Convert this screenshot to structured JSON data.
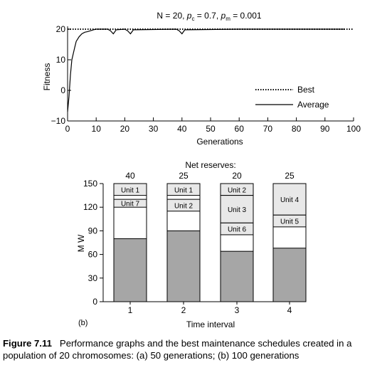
{
  "figure": {
    "number": "Figure 7.11",
    "caption": "Performance graphs and the best maintenance schedules created in a population of 20 chromosomes: (a) 50 generations; (b) 100 generations"
  },
  "chart_data": [
    {
      "type": "line",
      "title": "N = 20, pc = 0.7, pm = 0.001",
      "title_parts": {
        "n": "N = 20, ",
        "pc_sym": "p",
        "pc_sub": "c",
        "pc_val": " = 0.7, ",
        "pm_sym": "p",
        "pm_sub": "m",
        "pm_val": " = 0.001"
      },
      "xlabel": "Generations",
      "ylabel": "Fitness",
      "xlim": [
        0,
        100
      ],
      "ylim": [
        -10,
        20
      ],
      "xticks": [
        0,
        10,
        20,
        30,
        40,
        50,
        60,
        70,
        80,
        90,
        100
      ],
      "yticks": [
        -10,
        0,
        10,
        20
      ],
      "legend_position": "lower-right",
      "series": [
        {
          "name": "Best",
          "style": "dotted",
          "x": [
            0,
            100
          ],
          "y": [
            20,
            20
          ]
        },
        {
          "name": "Average",
          "style": "solid",
          "x": [
            0,
            0.5,
            1,
            1.5,
            2,
            2.5,
            3,
            4,
            5,
            6,
            7,
            8,
            9,
            10,
            14,
            15,
            16,
            17,
            20,
            21,
            22,
            23,
            38,
            39,
            40,
            41,
            60,
            70,
            80,
            90,
            97
          ],
          "y": [
            -7,
            -2,
            5,
            10,
            12,
            14,
            16,
            17.5,
            18.5,
            19,
            19.2,
            19.5,
            19.8,
            20,
            20,
            19.5,
            18.5,
            19.8,
            20,
            19.5,
            18.5,
            19.8,
            20,
            19.5,
            18.5,
            19.8,
            20,
            20,
            20,
            20,
            20
          ]
        }
      ]
    },
    {
      "type": "bar",
      "panel_label": "(b)",
      "title": "Net reserves:",
      "xlabel": "Time interval",
      "ylabel": "M W",
      "ylim": [
        0,
        150
      ],
      "yticks": [
        0,
        30,
        60,
        90,
        120,
        150
      ],
      "categories": [
        "1",
        "2",
        "3",
        "4"
      ],
      "net_reserves": [
        "40",
        "25",
        "20",
        "25"
      ],
      "base_load": [
        80,
        90,
        64,
        68
      ],
      "segments": [
        [
          {
            "label": "Unit 1",
            "from": 135,
            "to": 150
          },
          {
            "label": "Unit 7",
            "from": 120,
            "to": 130
          }
        ],
        [
          {
            "label": "Unit 1",
            "from": 135,
            "to": 150
          },
          {
            "label": "Unit 2",
            "from": 115,
            "to": 130
          }
        ],
        [
          {
            "label": "Unit 2",
            "from": 135,
            "to": 150
          },
          {
            "label": "Unit 3",
            "from": 100,
            "to": 135
          },
          {
            "label": "Unit 6",
            "from": 85,
            "to": 100
          }
        ],
        [
          {
            "label": "Unit 4",
            "from": 110,
            "to": 150
          },
          {
            "label": "Unit 5",
            "from": 95,
            "to": 110
          }
        ]
      ],
      "colors": {
        "base": "#a6a6a6",
        "unit": "#e8e8e8",
        "outline": "#000000"
      }
    }
  ]
}
